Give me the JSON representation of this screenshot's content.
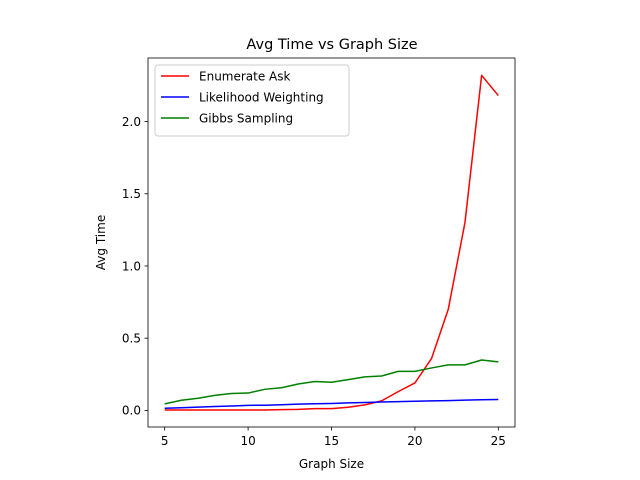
{
  "chart_data": {
    "type": "line",
    "title": "Avg Time vs Graph Size",
    "xlabel": "Graph Size",
    "ylabel": "Avg Time",
    "xlim": [
      4.0,
      26.0
    ],
    "ylim": [
      -0.115,
      2.44
    ],
    "xticks": [
      5,
      10,
      15,
      20,
      25
    ],
    "yticks": [
      0.0,
      0.5,
      1.0,
      1.5,
      2.0
    ],
    "xtick_labels": [
      "5",
      "10",
      "15",
      "20",
      "25"
    ],
    "ytick_labels": [
      "0.0",
      "0.5",
      "1.0",
      "1.5",
      "2.0"
    ],
    "grid": false,
    "legend_position": "top-left",
    "x": [
      5,
      6,
      7,
      8,
      9,
      10,
      11,
      12,
      13,
      14,
      15,
      16,
      17,
      18,
      19,
      20,
      21,
      22,
      23,
      24,
      25
    ],
    "series": [
      {
        "name": "Enumerate Ask",
        "color": "#ff0000",
        "values": [
          0.003,
          0.003,
          0.003,
          0.003,
          0.003,
          0.003,
          0.003,
          0.005,
          0.007,
          0.012,
          0.012,
          0.022,
          0.038,
          0.066,
          0.13,
          0.19,
          0.36,
          0.7,
          1.3,
          2.32,
          2.18
        ]
      },
      {
        "name": "Likelihood Weighting",
        "color": "#0000ff",
        "values": [
          0.015,
          0.018,
          0.023,
          0.027,
          0.03,
          0.035,
          0.036,
          0.039,
          0.043,
          0.046,
          0.048,
          0.052,
          0.055,
          0.058,
          0.061,
          0.063,
          0.066,
          0.068,
          0.071,
          0.074,
          0.075
        ]
      },
      {
        "name": "Gibbs Sampling",
        "color": "#008000",
        "values": [
          0.045,
          0.07,
          0.084,
          0.104,
          0.117,
          0.12,
          0.146,
          0.157,
          0.183,
          0.2,
          0.195,
          0.213,
          0.232,
          0.238,
          0.27,
          0.27,
          0.294,
          0.315,
          0.315,
          0.349,
          0.336
        ]
      }
    ]
  }
}
